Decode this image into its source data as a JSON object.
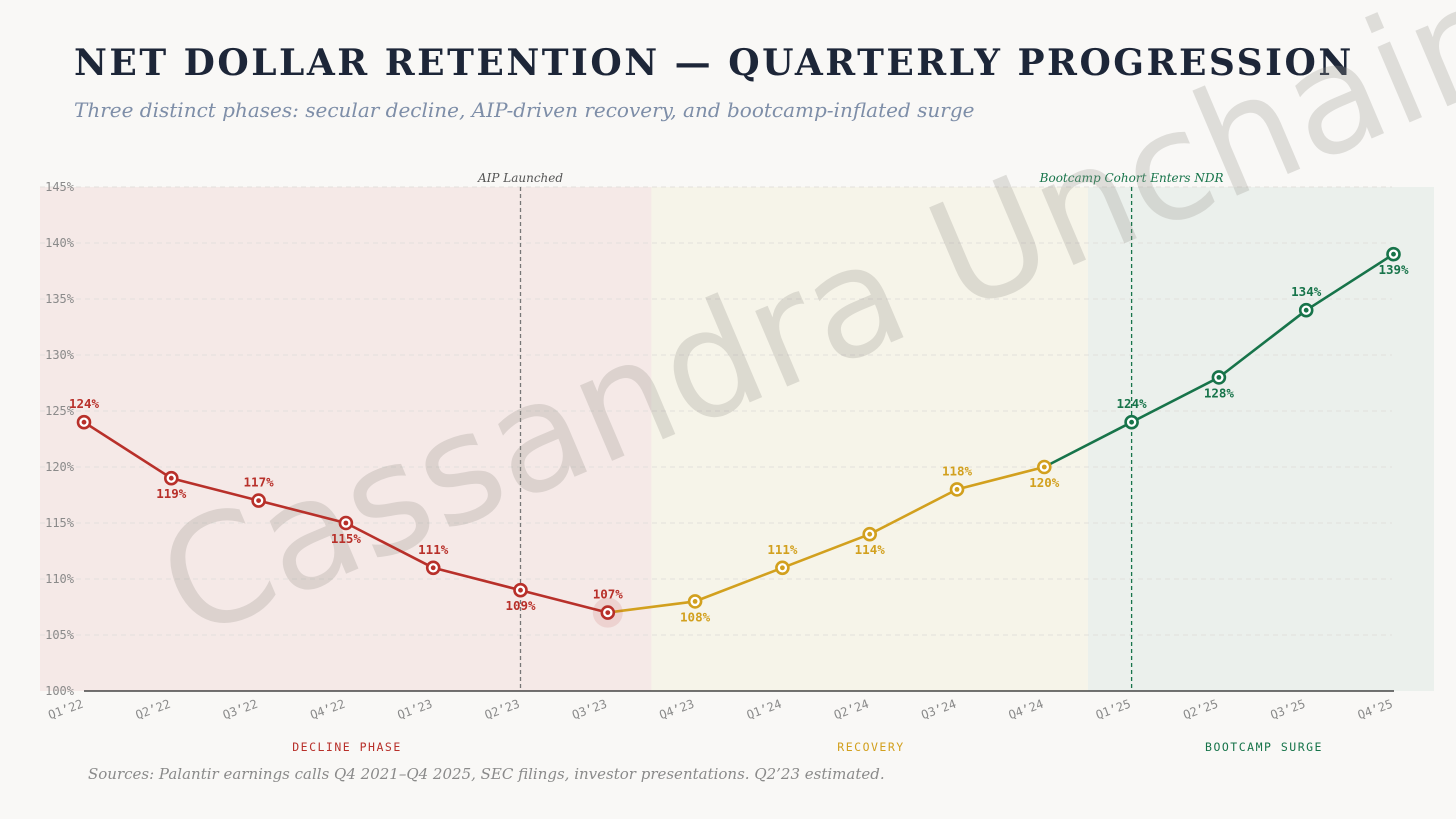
{
  "header": {
    "title": "NET DOLLAR RETENTION — QUARTERLY PROGRESSION",
    "subtitle": "Three distinct phases: secular decline, AIP-driven recovery, and bootcamp-inflated surge"
  },
  "footer": {
    "source": "Sources: Palantir earnings calls Q4 2021–Q4 2025, SEC filings, investor presentations. Q2’23 estimated."
  },
  "watermark": "Cassandra Unchained",
  "colors": {
    "decline": "#b8302a",
    "recovery": "#d2a01e",
    "surge": "#17744a",
    "decline_bg": "#f5e9e7",
    "recovery_bg": "#f6f4e9",
    "surge_bg": "#ebf0ec",
    "grid": "#e2e0dc",
    "axis": "#222222",
    "tick": "#8a8a8a",
    "vline": "#777777"
  },
  "chart_data": {
    "type": "line",
    "title": "NET DOLLAR RETENTION — QUARTERLY PROGRESSION",
    "xlabel": "",
    "ylabel": "",
    "ylim": [
      100,
      145
    ],
    "yticks": [
      100,
      105,
      110,
      115,
      120,
      125,
      130,
      135,
      140,
      145
    ],
    "ytick_suffix": "%",
    "categories": [
      "Q1'22",
      "Q2'22",
      "Q3'22",
      "Q4'22",
      "Q1'23",
      "Q2'23",
      "Q3'23",
      "Q4'23",
      "Q1'24",
      "Q2'24",
      "Q3'24",
      "Q4'24",
      "Q1'25",
      "Q2'25",
      "Q3'25",
      "Q4'25"
    ],
    "values": [
      124,
      119,
      117,
      115,
      111,
      109,
      107,
      108,
      111,
      114,
      118,
      120,
      124,
      128,
      134,
      139
    ],
    "label_positions": [
      "above",
      "below",
      "above",
      "below",
      "above",
      "below",
      "above",
      "below",
      "above",
      "below",
      "above",
      "below",
      "above",
      "below",
      "above",
      "below"
    ],
    "phases": [
      {
        "name": "DECLINE PHASE",
        "start": 0,
        "end": 6,
        "color_key": "decline"
      },
      {
        "name": "RECOVERY",
        "start": 6,
        "end": 11,
        "color_key": "recovery"
      },
      {
        "name": "BOOTCAMP SURGE",
        "start": 11,
        "end": 15,
        "color_key": "surge"
      }
    ],
    "annotations": [
      {
        "label": "AIP Launched",
        "at_index": 5,
        "color_key": "vline"
      },
      {
        "label": "Bootcamp Cohort Enters NDR",
        "at_index": 12,
        "color_key": "surge"
      }
    ],
    "grid": true
  }
}
